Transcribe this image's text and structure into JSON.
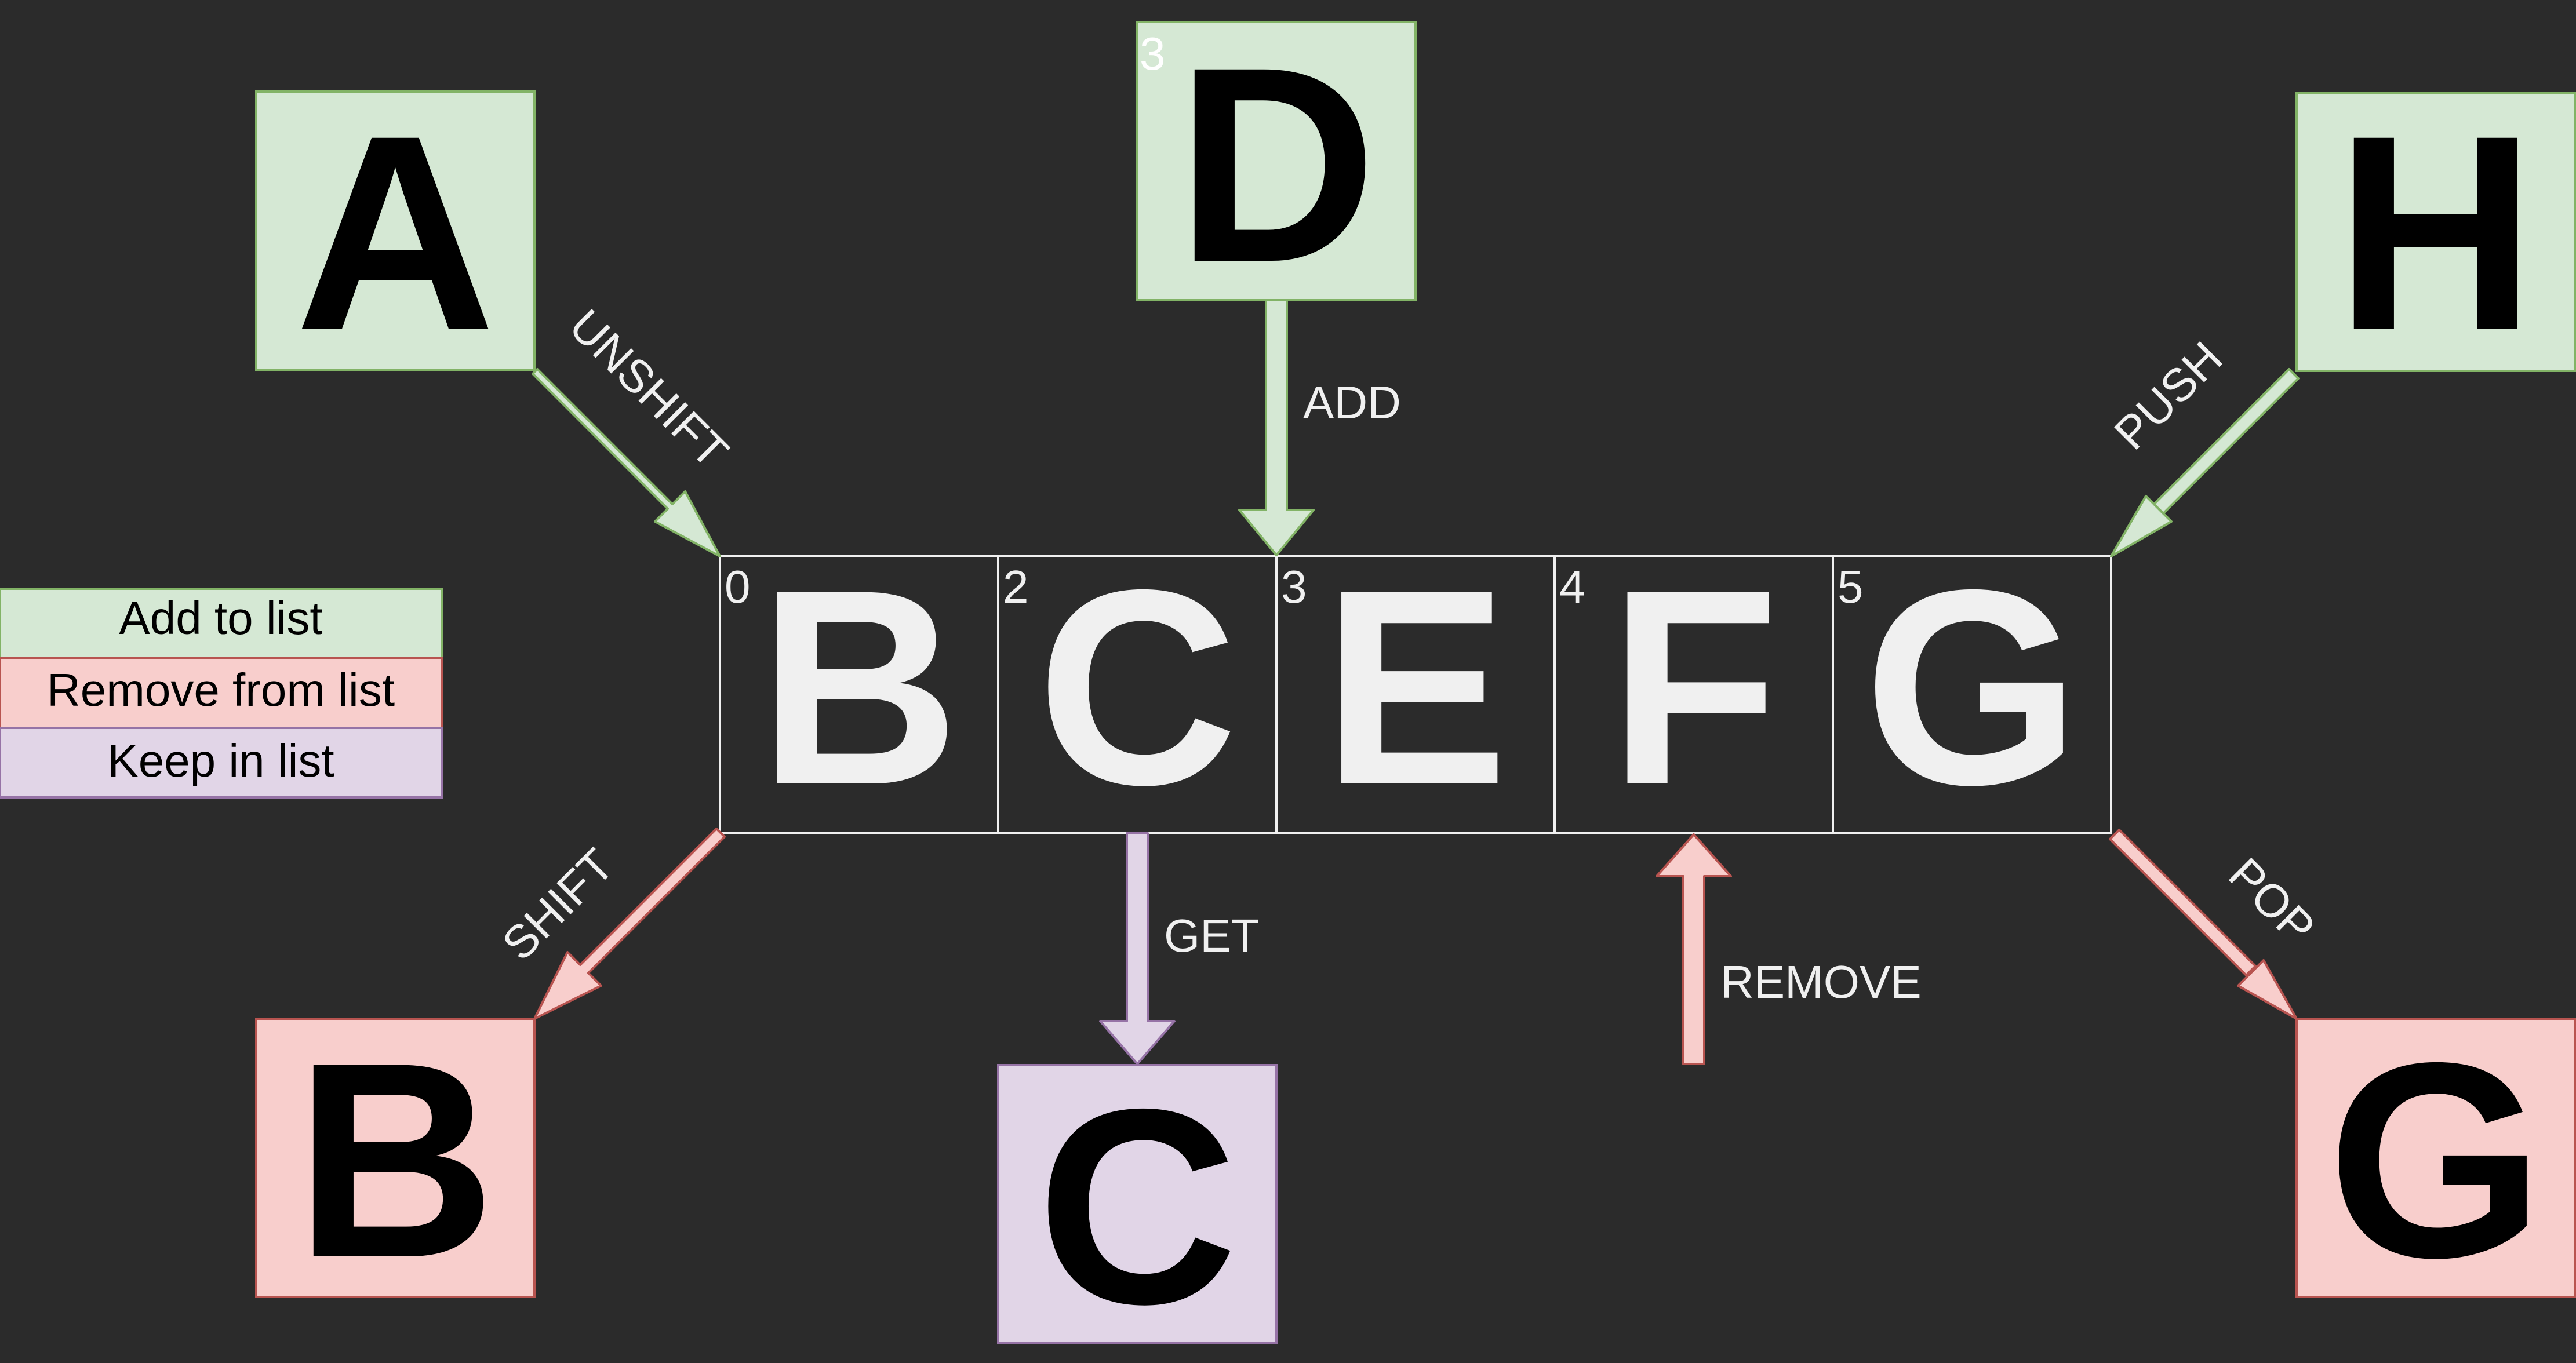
{
  "colors": {
    "background": "#2b2b2b",
    "add_fill": "#d5e8d4",
    "add_stroke": "#82b366",
    "remove_fill": "#f8cecc",
    "remove_stroke": "#b85450",
    "keep_fill": "#e1d5e7",
    "keep_stroke": "#9673a6",
    "list_stroke": "#f0f0f0",
    "list_text": "#f0f0f0",
    "box_text": "#000000"
  },
  "legend": {
    "add": "Add to list",
    "remove": "Remove from list",
    "keep": "Keep in list"
  },
  "list": {
    "cells": [
      {
        "index": "0",
        "letter": "B"
      },
      {
        "index": "2",
        "letter": "C"
      },
      {
        "index": "3",
        "letter": "E"
      },
      {
        "index": "4",
        "letter": "F"
      },
      {
        "index": "5",
        "letter": "G"
      }
    ]
  },
  "boxes": {
    "unshift_item": {
      "letter": "A"
    },
    "add_item": {
      "letter": "D",
      "index": "3"
    },
    "push_item": {
      "letter": "H"
    },
    "shift_item": {
      "letter": "B"
    },
    "get_item": {
      "letter": "C"
    },
    "pop_item": {
      "letter": "G"
    }
  },
  "operations": {
    "unshift": "UNSHIFT",
    "add": "ADD",
    "push": "PUSH",
    "shift": "SHIFT",
    "get": "GET",
    "remove": "REMOVE",
    "pop": "POP"
  }
}
